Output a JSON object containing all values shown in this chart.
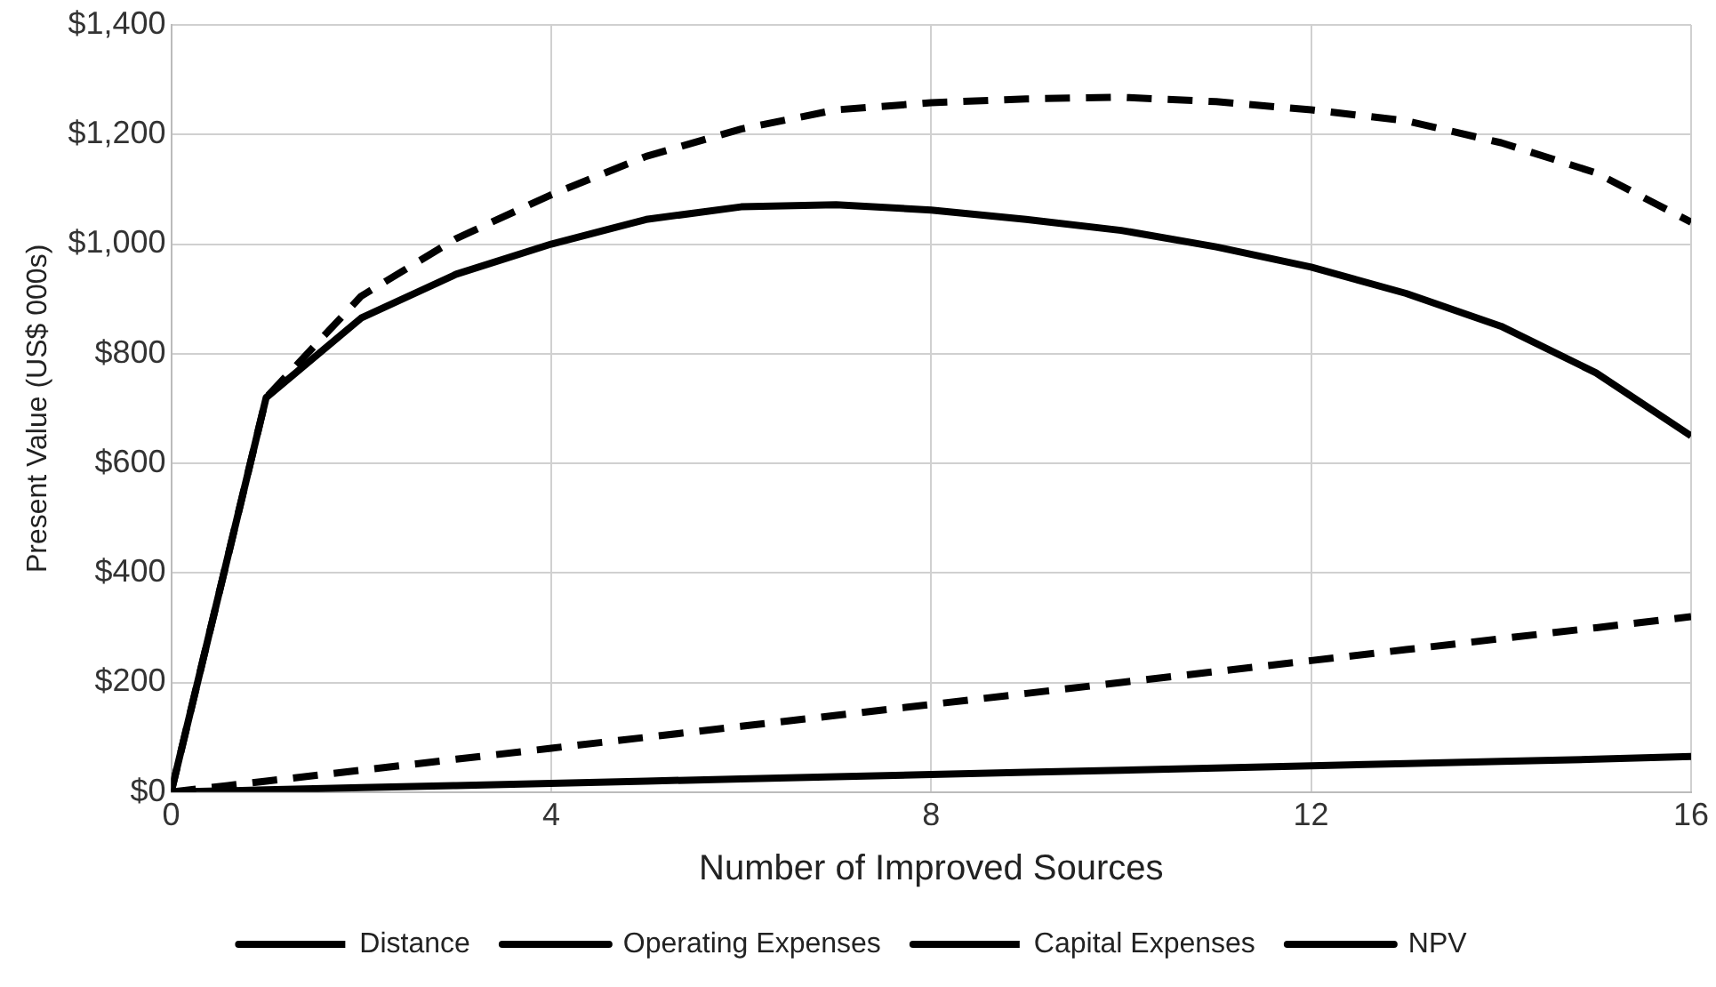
{
  "chart_data": {
    "type": "line",
    "xlabel": "Number of Improved Sources",
    "ylabel": "Present Value (US$ 000s)",
    "x": [
      0,
      1,
      2,
      3,
      4,
      5,
      6,
      7,
      8,
      9,
      10,
      11,
      12,
      13,
      14,
      15,
      16
    ],
    "xlim": [
      0,
      16
    ],
    "xticks": [
      0,
      4,
      8,
      12,
      16
    ],
    "ylim": [
      0,
      1400
    ],
    "yticks": [
      {
        "value": 0,
        "label": "$0"
      },
      {
        "value": 200,
        "label": "$200"
      },
      {
        "value": 400,
        "label": "$400"
      },
      {
        "value": 600,
        "label": "$600"
      },
      {
        "value": 800,
        "label": "$800"
      },
      {
        "value": 1000,
        "label": "$1,000"
      },
      {
        "value": 1200,
        "label": "$1,200"
      },
      {
        "value": 1400,
        "label": "$1,400"
      }
    ],
    "grid": true,
    "legend": "bottom",
    "marker": "none",
    "series": [
      {
        "name": "Distance",
        "color": "#000000",
        "line_style": "dashed",
        "values": [
          0,
          720,
          905,
          1010,
          1090,
          1160,
          1210,
          1245,
          1258,
          1265,
          1268,
          1260,
          1245,
          1225,
          1185,
          1130,
          1040
        ]
      },
      {
        "name": "Operating Expenses",
        "color": "#000000",
        "line_style": "solid",
        "values": [
          0,
          4,
          8,
          12,
          16,
          20,
          24,
          28,
          32,
          36,
          40,
          44,
          48,
          52,
          56,
          60,
          65
        ]
      },
      {
        "name": "Capital Expenses",
        "color": "#000000",
        "line_style": "dashed",
        "values": [
          0,
          20,
          40,
          60,
          80,
          100,
          120,
          140,
          160,
          180,
          200,
          220,
          240,
          260,
          280,
          300,
          320
        ]
      },
      {
        "name": "NPV",
        "color": "#000000",
        "line_style": "solid",
        "values": [
          0,
          720,
          865,
          945,
          1000,
          1045,
          1068,
          1072,
          1062,
          1045,
          1025,
          995,
          958,
          910,
          850,
          765,
          650
        ]
      }
    ]
  }
}
